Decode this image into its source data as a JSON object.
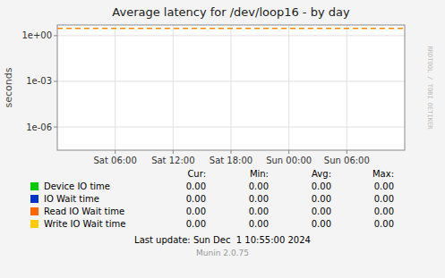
{
  "chart_data": {
    "type": "line",
    "title": "Average latency for /dev/loop16 - by day",
    "y_label": "seconds",
    "log": "y",
    "grid": true,
    "categories": [
      "Sat 06:00",
      "Sat 12:00",
      "Sat 18:00",
      "Sun 00:00",
      "Sun 06:00"
    ],
    "ylim": [
      3e-08,
      5.0
    ],
    "yticks": [
      {
        "value": 1e-06,
        "label": "1e-06"
      },
      {
        "value": 0.001,
        "label": "1e-03"
      },
      {
        "value": 1,
        "label": "1e+00"
      }
    ],
    "reference_line": {
      "value": 3.0,
      "color": "#ff8800",
      "line_style": "dashed"
    },
    "summary_headers": [
      "Cur:",
      "Min:",
      "Avg:",
      "Max:"
    ],
    "series": [
      {
        "name": "Device IO time",
        "color": "#00cc00",
        "summary": [
          {
            "value": 0,
            "label": "0.00"
          },
          {
            "value": 0,
            "label": "0.00"
          },
          {
            "value": 0,
            "label": "0.00"
          },
          {
            "value": 0,
            "label": "0.00"
          }
        ]
      },
      {
        "name": "IO Wait time",
        "color": "#0033cc",
        "summary": [
          {
            "value": 0,
            "label": "0.00"
          },
          {
            "value": 0,
            "label": "0.00"
          },
          {
            "value": 0,
            "label": "0.00"
          },
          {
            "value": 0,
            "label": "0.00"
          }
        ]
      },
      {
        "name": "Read IO Wait time",
        "color": "#ff6600",
        "summary": [
          {
            "value": 0,
            "label": "0.00"
          },
          {
            "value": 0,
            "label": "0.00"
          },
          {
            "value": 0,
            "label": "0.00"
          },
          {
            "value": 0,
            "label": "0.00"
          }
        ]
      },
      {
        "name": "Write IO Wait time",
        "color": "#ffcc00",
        "summary": [
          {
            "value": 0,
            "label": "0.00"
          },
          {
            "value": 0,
            "label": "0.00"
          },
          {
            "value": 0,
            "label": "0.00"
          },
          {
            "value": 0,
            "label": "0.00"
          }
        ]
      }
    ],
    "last_update": "Last update: Sun Dec  1 10:55:00 2024",
    "footer": "Munin 2.0.75",
    "watermark": "RRDTOOL / TOBI OETIKER"
  }
}
